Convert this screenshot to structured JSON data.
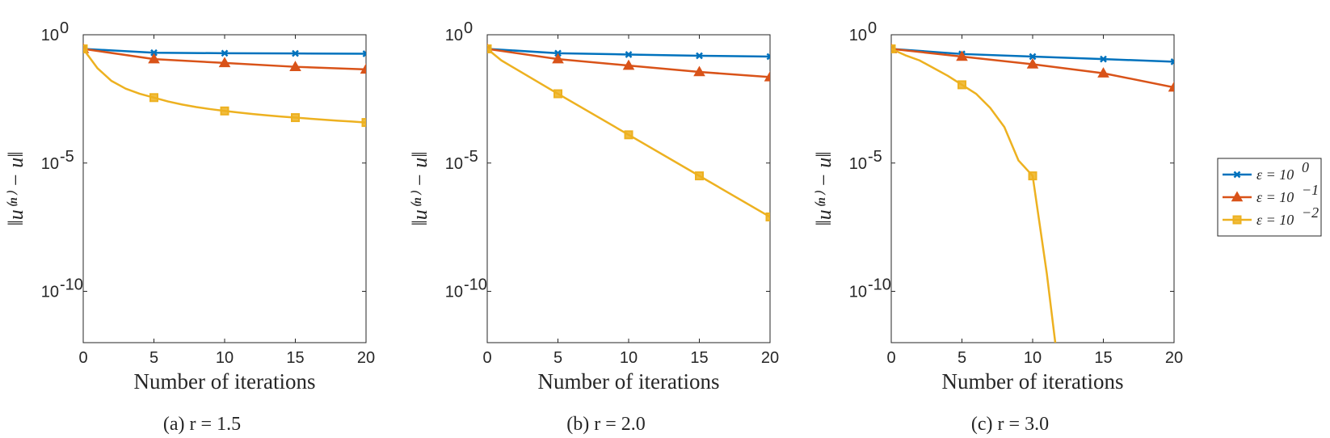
{
  "chart_data": [
    {
      "type": "line",
      "caption": "(a) r = 1.5",
      "xlabel": "Number of iterations",
      "ylabel": "‖u⁽ⁿ⁾ − u‖",
      "yscale": "log",
      "xlim": [
        0,
        20
      ],
      "ylim_exp": [
        -12,
        0
      ],
      "xticks": [
        "0",
        "5",
        "10",
        "15",
        "20"
      ],
      "yticks": [
        {
          "base": "10",
          "exp": "0"
        },
        {
          "base": "10",
          "exp": "-5"
        },
        {
          "base": "10",
          "exp": "-10"
        }
      ],
      "series": [
        {
          "name": "ε = 10^0",
          "color": "#0072BD",
          "marker": "x",
          "x": [
            0,
            5,
            10,
            15,
            20
          ],
          "log_values": [
            -0.55,
            -0.7,
            -0.72,
            -0.73,
            -0.74
          ]
        },
        {
          "name": "ε = 10^-1",
          "color": "#D95319",
          "marker": "triangle",
          "x": [
            0,
            5,
            10,
            15,
            20
          ],
          "log_values": [
            -0.55,
            -0.95,
            -1.1,
            -1.25,
            -1.35
          ]
        },
        {
          "name": "ε = 10^-2",
          "color": "#EDB120",
          "marker": "square",
          "x": [
            0,
            1,
            2,
            3,
            4,
            5,
            6,
            7,
            8,
            9,
            10,
            11,
            12,
            13,
            14,
            15,
            16,
            17,
            18,
            19,
            20
          ],
          "log_values": [
            -0.55,
            -1.3,
            -1.8,
            -2.1,
            -2.3,
            -2.45,
            -2.6,
            -2.72,
            -2.82,
            -2.9,
            -2.97,
            -3.03,
            -3.09,
            -3.14,
            -3.19,
            -3.23,
            -3.27,
            -3.31,
            -3.35,
            -3.38,
            -3.42
          ],
          "marker_x": [
            0,
            5,
            10,
            15,
            20
          ]
        }
      ]
    },
    {
      "type": "line",
      "caption": "(b) r = 2.0",
      "xlabel": "Number of iterations",
      "ylabel": "‖u⁽ⁿ⁾ − u‖",
      "yscale": "log",
      "xlim": [
        0,
        20
      ],
      "ylim_exp": [
        -12,
        0
      ],
      "xticks": [
        "0",
        "5",
        "10",
        "15",
        "20"
      ],
      "yticks": [
        {
          "base": "10",
          "exp": "0"
        },
        {
          "base": "10",
          "exp": "-5"
        },
        {
          "base": "10",
          "exp": "-10"
        }
      ],
      "series": [
        {
          "name": "ε = 10^0",
          "color": "#0072BD",
          "marker": "x",
          "x": [
            0,
            5,
            10,
            15,
            20
          ],
          "log_values": [
            -0.55,
            -0.72,
            -0.77,
            -0.82,
            -0.85
          ]
        },
        {
          "name": "ε = 10^-1",
          "color": "#D95319",
          "marker": "triangle",
          "x": [
            0,
            5,
            10,
            15,
            20
          ],
          "log_values": [
            -0.55,
            -0.95,
            -1.2,
            -1.45,
            -1.65
          ]
        },
        {
          "name": "ε = 10^-2",
          "color": "#EDB120",
          "marker": "square",
          "x": [
            0,
            1,
            5,
            10,
            15,
            20
          ],
          "log_values": [
            -0.55,
            -1.0,
            -2.3,
            -3.9,
            -5.5,
            -7.1
          ],
          "marker_x": [
            0,
            5,
            10,
            15,
            20
          ]
        }
      ]
    },
    {
      "type": "line",
      "caption": "(c) r = 3.0",
      "xlabel": "Number of iterations",
      "ylabel": "‖u⁽ⁿ⁾ − u‖",
      "yscale": "log",
      "xlim": [
        0,
        20
      ],
      "ylim_exp": [
        -12,
        0
      ],
      "xticks": [
        "0",
        "5",
        "10",
        "15",
        "20"
      ],
      "yticks": [
        {
          "base": "10",
          "exp": "0"
        },
        {
          "base": "10",
          "exp": "-5"
        },
        {
          "base": "10",
          "exp": "-10"
        }
      ],
      "series": [
        {
          "name": "ε = 10^0",
          "color": "#0072BD",
          "marker": "x",
          "x": [
            0,
            5,
            10,
            15,
            20
          ],
          "log_values": [
            -0.55,
            -0.75,
            -0.85,
            -0.95,
            -1.05
          ]
        },
        {
          "name": "ε = 10^-1",
          "color": "#D95319",
          "marker": "triangle",
          "x": [
            0,
            5,
            10,
            15,
            20
          ],
          "log_values": [
            -0.55,
            -0.85,
            -1.15,
            -1.5,
            -2.05
          ]
        },
        {
          "name": "ε = 10^-2",
          "color": "#EDB120",
          "marker": "square",
          "x": [
            0,
            1,
            2,
            3,
            4,
            5,
            6,
            7,
            8,
            9,
            10,
            11,
            11.6
          ],
          "log_values": [
            -0.55,
            -0.8,
            -1.0,
            -1.3,
            -1.6,
            -1.95,
            -2.3,
            -2.85,
            -3.6,
            -4.9,
            -5.5,
            -9.3,
            -12
          ],
          "marker_x": [
            0,
            5,
            10
          ]
        }
      ]
    }
  ],
  "legend": {
    "placement": "right",
    "entries": [
      {
        "label_base": "ε = 10",
        "label_exp": "0",
        "color": "#0072BD",
        "marker": "x"
      },
      {
        "label_base": "ε = 10",
        "label_exp": "−1",
        "color": "#D95319",
        "marker": "triangle"
      },
      {
        "label_base": "ε = 10",
        "label_exp": "−2",
        "color": "#EDB120",
        "marker": "square"
      }
    ]
  }
}
